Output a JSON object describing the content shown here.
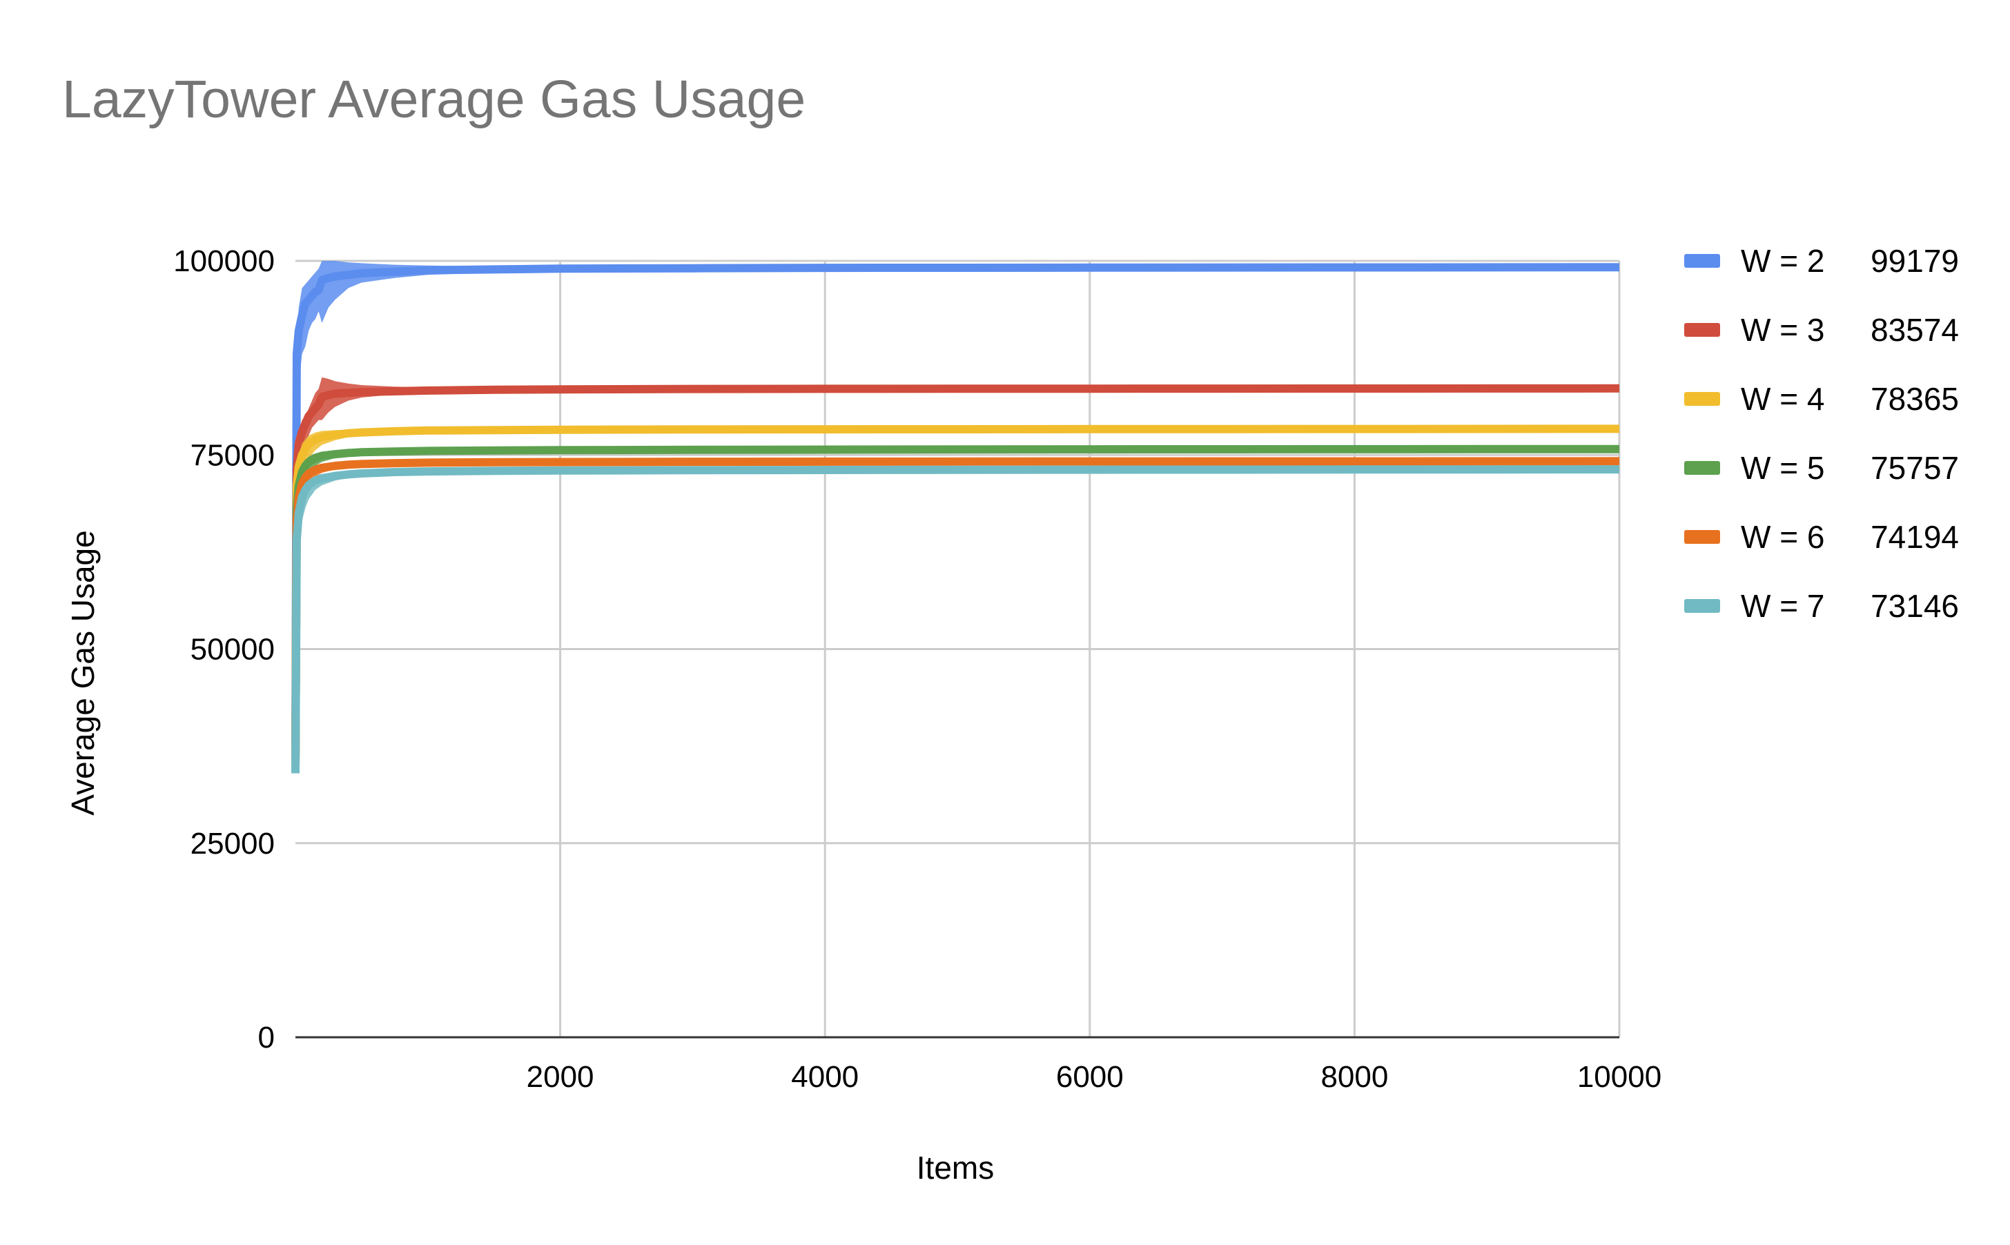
{
  "chart_data": {
    "type": "line",
    "title": "LazyTower Average Gas Usage",
    "xlabel": "Items",
    "ylabel": "Average Gas Usage",
    "xlim": [
      0,
      10000
    ],
    "ylim": [
      0,
      100000
    ],
    "x_ticks": [
      2000,
      4000,
      6000,
      8000,
      10000
    ],
    "y_ticks": [
      0,
      25000,
      50000,
      75000,
      100000
    ],
    "grid": true,
    "legend_position": "right",
    "series": [
      {
        "name": "W = 2",
        "final_value_label": "99179",
        "color": "#5b8def",
        "x": [
          0,
          10,
          25,
          50,
          75,
          100,
          125,
          150,
          175,
          200,
          250,
          300,
          400,
          500,
          750,
          1000,
          1500,
          2000,
          3000,
          4000,
          6000,
          8000,
          10000
        ],
        "y": [
          35000,
          88000,
          91000,
          93000,
          94500,
          95000,
          95500,
          96000,
          96200,
          97500,
          97800,
          98000,
          98200,
          98400,
          98600,
          98800,
          98900,
          99000,
          99050,
          99100,
          99130,
          99160,
          99179
        ],
        "band_upper": [
          35000,
          90000,
          94000,
          96500,
          97000,
          97500,
          98000,
          98500,
          99000,
          100000,
          100000,
          100000,
          99800,
          99700,
          99500,
          99400,
          99300,
          99200,
          99150,
          99150,
          99150,
          99170,
          99190
        ],
        "band_lower": [
          34000,
          72000,
          84000,
          88000,
          89000,
          91000,
          92000,
          92500,
          93500,
          92000,
          94000,
          95000,
          96500,
          97200,
          97800,
          98200,
          98500,
          98700,
          98900,
          99000,
          99080,
          99130,
          99160
        ]
      },
      {
        "name": "W = 3",
        "final_value_label": "83574",
        "color": "#d04c3c",
        "x": [
          0,
          10,
          25,
          50,
          75,
          100,
          125,
          150,
          175,
          200,
          250,
          300,
          400,
          500,
          750,
          1000,
          1500,
          2000,
          3000,
          4000,
          6000,
          8000,
          10000
        ],
        "y": [
          35000,
          73000,
          76500,
          78000,
          79000,
          80000,
          80500,
          81000,
          81500,
          82500,
          82700,
          82900,
          83000,
          83100,
          83200,
          83300,
          83400,
          83450,
          83500,
          83520,
          83540,
          83560,
          83574
        ],
        "band_upper": [
          35000,
          74000,
          78000,
          79500,
          80000,
          81000,
          82000,
          83000,
          83500,
          85000,
          84800,
          84500,
          84200,
          84000,
          83800,
          83700,
          83600,
          83550,
          83550,
          83550,
          83560,
          83570,
          83580
        ],
        "band_lower": [
          34000,
          68000,
          72000,
          75000,
          76500,
          77500,
          78500,
          79000,
          79500,
          79500,
          80500,
          81200,
          82000,
          82400,
          82800,
          83000,
          83200,
          83300,
          83400,
          83480,
          83520,
          83550,
          83568
        ]
      },
      {
        "name": "W = 4",
        "final_value_label": "78365",
        "color": "#f1bd2d",
        "x": [
          0,
          10,
          25,
          50,
          75,
          100,
          150,
          200,
          300,
          400,
          500,
          750,
          1000,
          1500,
          2000,
          3000,
          4000,
          6000,
          8000,
          10000
        ],
        "y": [
          35000,
          71000,
          73500,
          75000,
          75800,
          76400,
          77000,
          77300,
          77600,
          77800,
          77900,
          78050,
          78150,
          78200,
          78250,
          78280,
          78300,
          78330,
          78350,
          78365
        ],
        "band_upper": [
          35000,
          72000,
          75000,
          76500,
          77000,
          77500,
          77900,
          78100,
          78200,
          78250,
          78300,
          78320,
          78330,
          78340,
          78340,
          78345,
          78350,
          78355,
          78360,
          78370
        ],
        "band_lower": [
          34000,
          66000,
          70000,
          72500,
          73800,
          74600,
          75600,
          76300,
          76900,
          77300,
          77500,
          77800,
          77950,
          78080,
          78150,
          78220,
          78260,
          78300,
          78335,
          78358
        ]
      },
      {
        "name": "W = 5",
        "final_value_label": "75757",
        "color": "#5da14f",
        "x": [
          0,
          10,
          25,
          50,
          75,
          100,
          150,
          200,
          300,
          400,
          500,
          750,
          1000,
          1500,
          2000,
          3000,
          4000,
          6000,
          8000,
          10000
        ],
        "y": [
          35000,
          68000,
          71000,
          72800,
          73600,
          74100,
          74600,
          74900,
          75100,
          75250,
          75350,
          75450,
          75520,
          75580,
          75620,
          75660,
          75690,
          75720,
          75740,
          75757
        ],
        "band_upper": [
          35000,
          69000,
          72200,
          73800,
          74400,
          74800,
          75200,
          75400,
          75500,
          75550,
          75600,
          75640,
          75660,
          75680,
          75690,
          75700,
          75710,
          75730,
          75745,
          75762
        ],
        "band_lower": [
          34000,
          64000,
          68000,
          70800,
          72000,
          72800,
          73600,
          74100,
          74600,
          74900,
          75050,
          75250,
          75360,
          75470,
          75530,
          75600,
          75650,
          75700,
          75730,
          75750
        ]
      },
      {
        "name": "W = 6",
        "final_value_label": "74194",
        "color": "#e8711f",
        "x": [
          0,
          10,
          25,
          50,
          75,
          100,
          150,
          200,
          300,
          400,
          500,
          750,
          1000,
          1500,
          2000,
          3000,
          4000,
          6000,
          8000,
          10000
        ],
        "y": [
          35000,
          66500,
          69500,
          71300,
          72100,
          72600,
          73100,
          73350,
          73600,
          73750,
          73830,
          73950,
          74010,
          74060,
          74090,
          74120,
          74140,
          74165,
          74180,
          74194
        ],
        "band_upper": [
          35000,
          67500,
          70600,
          72200,
          72800,
          73200,
          73600,
          73800,
          73950,
          74000,
          74050,
          74090,
          74110,
          74130,
          74140,
          74150,
          74160,
          74175,
          74185,
          74198
        ],
        "band_lower": [
          34000,
          63000,
          66500,
          69300,
          70500,
          71300,
          72200,
          72700,
          73150,
          73400,
          73550,
          73750,
          73850,
          73950,
          74010,
          74060,
          74100,
          74140,
          74170,
          74188
        ]
      },
      {
        "name": "W = 7",
        "final_value_label": "73146",
        "color": "#71bac3",
        "x": [
          0,
          10,
          25,
          50,
          75,
          100,
          150,
          200,
          300,
          400,
          500,
          750,
          1000,
          1500,
          2000,
          3000,
          4000,
          6000,
          8000,
          10000
        ],
        "y": [
          34000,
          64000,
          67500,
          69600,
          70500,
          71100,
          71700,
          72000,
          72300,
          72500,
          72620,
          72800,
          72880,
          72960,
          73000,
          73040,
          73070,
          73100,
          73125,
          73146
        ],
        "band_upper": [
          34000,
          65500,
          68700,
          70500,
          71300,
          71800,
          72300,
          72550,
          72750,
          72850,
          72920,
          73000,
          73040,
          73070,
          73080,
          73090,
          73100,
          73120,
          73135,
          73150
        ],
        "band_lower": [
          33500,
          58000,
          63000,
          66500,
          68200,
          69300,
          70500,
          71100,
          71700,
          72050,
          72250,
          72550,
          72700,
          72850,
          72920,
          72990,
          73030,
          73080,
          73115,
          73140
        ]
      }
    ]
  }
}
